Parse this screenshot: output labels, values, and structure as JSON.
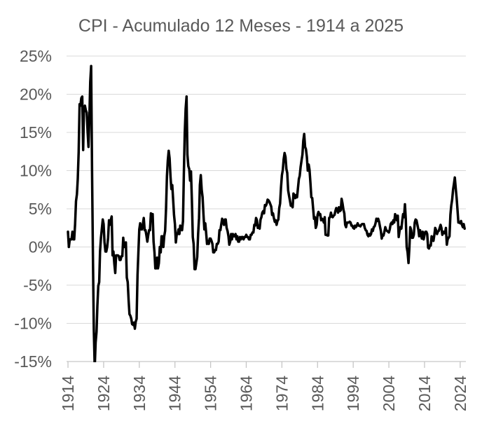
{
  "chart_data": {
    "type": "line",
    "title": "CPI - Acumulado 12 Meses - 1914 a 2025",
    "x": {
      "tick_labels": [
        "1914",
        "1924",
        "1934",
        "1944",
        "1954",
        "1964",
        "1974",
        "1984",
        "1994",
        "2004",
        "2014",
        "2024"
      ],
      "tick_years": [
        1914,
        1924,
        1934,
        1944,
        1954,
        1964,
        1974,
        1984,
        1994,
        2004,
        2014,
        2024
      ],
      "range": [
        1913.6,
        2025.6
      ]
    },
    "y": {
      "tick_labels": [
        "25%",
        "20%",
        "15%",
        "10%",
        "5%",
        "0%",
        "-5%",
        "-10%",
        "-15%"
      ],
      "tick_values": [
        25,
        20,
        15,
        10,
        5,
        0,
        -5,
        -10,
        -15
      ],
      "range": [
        -15,
        25
      ],
      "unit": "%"
    },
    "grid": true,
    "legend": false,
    "colors": {
      "line": "#000000",
      "grid": "#d9d9d9",
      "axis": "#c6c6c6",
      "text": "#595959",
      "background": "#ffffff"
    },
    "series": [
      {
        "name": "CPI acumulado 12 meses",
        "start_year": 1914,
        "points_per_year": 4,
        "values": [
          2,
          0,
          1,
          1,
          1,
          2,
          1,
          1,
          3,
          6,
          6.9,
          8.9,
          12.5,
          18.7,
          18.5,
          19.5,
          19.7,
          12.7,
          18,
          18.5,
          17.9,
          17.6,
          15.2,
          13.1,
          17,
          21.6,
          23.7,
          9.9,
          -1.6,
          -10.8,
          -15.8,
          -12.5,
          -11.1,
          -7.7,
          -5.1,
          -4.6,
          -0.6,
          1.2,
          2.4,
          3.6,
          3,
          0.6,
          -0.6,
          -0.6,
          0,
          1.2,
          3.5,
          2.9,
          3.5,
          4,
          -1.1,
          -0.6,
          -2.2,
          -3.4,
          -1.1,
          -1.1,
          -1.1,
          -1.2,
          -1.7,
          -1.7,
          -1.2,
          -1.2,
          1.2,
          0,
          0,
          0.6,
          -4,
          -4.6,
          -7,
          -8.8,
          -9,
          -9.4,
          -10.1,
          -10.2,
          -9.9,
          -10.7,
          -9.8,
          -9.4,
          -3.7,
          -0.8,
          2.3,
          3.1,
          2.3,
          2.3,
          3,
          3.8,
          2.2,
          2.2,
          1.5,
          0.7,
          1.5,
          2.2,
          2.2,
          4.4,
          4.3,
          4.3,
          0.7,
          -0.7,
          -2.8,
          -2.8,
          -1.4,
          -2.8,
          -2.1,
          0,
          -0.7,
          1.4,
          1.4,
          0,
          1.4,
          2.1,
          5,
          9.3,
          11.3,
          12.6,
          11.6,
          9.2,
          7.6,
          8.1,
          6.1,
          4.2,
          3,
          0.6,
          1.7,
          1.7,
          2.3,
          1.7,
          2.8,
          2.3,
          2.2,
          3.4,
          9.4,
          14.9,
          18.1,
          19.7,
          12.1,
          10.6,
          10.2,
          8.7,
          9.9,
          6.1,
          1.3,
          0.4,
          -2.9,
          -2.9,
          -2.1,
          -1.3,
          1.7,
          3.8,
          8.1,
          9.4,
          7.5,
          6.5,
          4.3,
          2.3,
          3.1,
          1.9,
          0.4,
          0.8,
          0.4,
          1.1,
          1.1,
          0.8,
          0.4,
          -0.7,
          -0.7,
          -0.4,
          -0.4,
          0.4,
          0.4,
          0.7,
          2.2,
          2.2,
          3,
          3.7,
          3.3,
          2.9,
          3.6,
          3.6,
          2.5,
          2.1,
          1.4,
          0.3,
          0.7,
          1.7,
          1,
          1.7,
          1.4,
          1.4,
          1.7,
          1,
          1.4,
          0.7,
          0.7,
          1.3,
          1,
          1.3,
          1.3,
          1,
          1.3,
          1.3,
          1.6,
          1.3,
          1.3,
          1,
          1,
          1.6,
          1.6,
          1.9,
          1.9,
          2.9,
          2.8,
          3.8,
          3.5,
          2.5,
          2.8,
          2.4,
          3.6,
          3.9,
          4.5,
          4.7,
          4.4,
          5.5,
          5.4,
          5.7,
          6.2,
          6.1,
          5.9,
          5.6,
          5.3,
          4.2,
          4.4,
          3.8,
          3.3,
          3.5,
          2.9,
          3.4,
          3.6,
          5.1,
          5.7,
          7.8,
          9.4,
          10.1,
          11.5,
          12.3,
          11.8,
          10.2,
          9.7,
          7.4,
          6.7,
          6.1,
          5.4,
          5.5,
          5.2,
          7,
          6.8,
          6.4,
          6.8,
          6.5,
          7.7,
          8.9,
          9.3,
          10.5,
          11.3,
          12.1,
          13.9,
          14.8,
          13.1,
          12.8,
          11.8,
          10,
          10.8,
          10.1,
          8.4,
          6.5,
          6.4,
          5.1,
          3.7,
          3.9,
          2.5,
          2.9,
          4.2,
          4.6,
          4.2,
          4.3,
          3.5,
          3.7,
          3.6,
          3.2,
          3.9,
          1.6,
          1.6,
          1.5,
          1.5,
          3.8,
          3.9,
          4.5,
          4,
          3.9,
          4.1,
          4.2,
          4.7,
          5.1,
          5,
          4.5,
          5.2,
          4.7,
          4.8,
          6.3,
          5.7,
          4.9,
          4.4,
          2.9,
          2.6,
          3.2,
          3.2,
          3.2,
          3.3,
          3.2,
          2.8,
          2.8,
          2.5,
          2.4,
          2.8,
          2.6,
          2.8,
          3.1,
          2.8,
          2.8,
          2.7,
          2.9,
          3,
          3,
          3,
          2.5,
          2.2,
          2.1,
          1.6,
          1.4,
          1.7,
          1.5,
          1.7,
          2.3,
          2.1,
          2.6,
          2.7,
          3.1,
          3.7,
          3.4,
          3.7,
          3.3,
          2.7,
          2.1,
          1.1,
          1.6,
          1.5,
          2,
          2.6,
          2.2,
          2.1,
          2,
          1.9,
          2.3,
          3,
          3.2,
          3,
          3.5,
          3.2,
          4.3,
          4,
          3.5,
          4.1,
          1.3,
          2.1,
          2.6,
          2.4,
          3.5,
          4.3,
          3.9,
          5.6,
          3.7,
          0,
          -0.7,
          -2.1,
          -0.2,
          2.6,
          2.2,
          1.2,
          1.2,
          1.6,
          3.2,
          3.6,
          3.5,
          2.9,
          2.3,
          1.4,
          2.2,
          1.6,
          1.1,
          2,
          1,
          1.6,
          2,
          2,
          1.7,
          -0.1,
          -0.2,
          0.2,
          0.2,
          1.4,
          1.1,
          0.8,
          1.6,
          2.5,
          2.2,
          1.7,
          2,
          2.1,
          2.5,
          2.9,
          2.5,
          1.6,
          2,
          1.8,
          1.8,
          2.5,
          0.3,
          1,
          1.2,
          1.4,
          4.2,
          5.4,
          6.2,
          7.5,
          8.3,
          9.1,
          7.7,
          6.4,
          4.9,
          3.2,
          3.2,
          3.1,
          3.4,
          2.9,
          2.6,
          3,
          2.4
        ]
      }
    ]
  }
}
